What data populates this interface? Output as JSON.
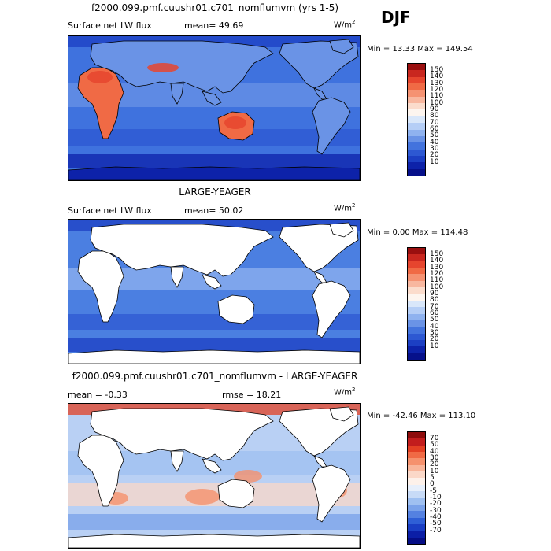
{
  "season": "DJF",
  "panels": [
    {
      "title": "f2000.099.pmf.cuushr01.c701_nomflumvm (yrs 1-5)",
      "left_label": "Surface net LW flux",
      "mid_label": "mean=  49.69",
      "units": "W/m",
      "units_sup": "2",
      "minmax": "Min =  13.33 Max = 149.54",
      "bg": "#3f72de",
      "land": "bright",
      "colorbar": {
        "colors": [
          "#9a0f0f",
          "#c9271f",
          "#e6452e",
          "#f06a45",
          "#f59272",
          "#f8b79f",
          "#fbdccc",
          "#fdf5ef",
          "#d9e7fa",
          "#b5cef6",
          "#8fb2ef",
          "#6a93e6",
          "#4373dd",
          "#2d58d2",
          "#1c3fc3",
          "#0d22a9",
          "#06108a"
        ],
        "labels": [
          "150",
          "140",
          "130",
          "120",
          "110",
          "100",
          "90",
          "80",
          "70",
          "60",
          "50",
          "40",
          "30",
          "20",
          "10"
        ]
      }
    },
    {
      "title": "LARGE-YEAGER",
      "left_label": "Surface net LW flux",
      "mid_label": "mean=  50.02",
      "units": "W/m",
      "units_sup": "2",
      "minmax": "Min =   0.00 Max = 114.48",
      "bg": "#4b7fe1",
      "land": "white",
      "colorbar": {
        "colors": [
          "#9a0f0f",
          "#c9271f",
          "#e6452e",
          "#f06a45",
          "#f59272",
          "#f8b79f",
          "#fbdccc",
          "#fdf5ef",
          "#d9e7fa",
          "#b5cef6",
          "#8fb2ef",
          "#6a93e6",
          "#4373dd",
          "#2d58d2",
          "#1c3fc3",
          "#0d22a9",
          "#06108a"
        ],
        "labels": [
          "150",
          "140",
          "130",
          "120",
          "110",
          "100",
          "90",
          "80",
          "70",
          "60",
          "50",
          "40",
          "30",
          "20",
          "10"
        ]
      }
    },
    {
      "title": "f2000.099.pmf.cuushr01.c701_nomflumvm - LARGE-YEAGER",
      "left_label": "mean =  -0.33",
      "mid_label": "rmse =  18.21",
      "units": "W/m",
      "units_sup": "2",
      "minmax": "Min = -42.46 Max = 113.10",
      "bg": "#b9d0f4",
      "land": "white",
      "colorbar": {
        "colors": [
          "#8e0c0c",
          "#c21d1d",
          "#e34024",
          "#f06a45",
          "#f5916d",
          "#f8b59a",
          "#fbd8c8",
          "#fdf1ea",
          "#e7effb",
          "#c8dbf7",
          "#9fc0f1",
          "#7aa2ea",
          "#5481e1",
          "#2f5fd6",
          "#1a3ec4",
          "#0b1ea6",
          "#050d85"
        ],
        "labels": [
          "70",
          "50",
          "40",
          "30",
          "20",
          "10",
          "5",
          "0",
          "-5",
          "-10",
          "-20",
          "-30",
          "-40",
          "-50",
          "-70"
        ]
      }
    }
  ]
}
